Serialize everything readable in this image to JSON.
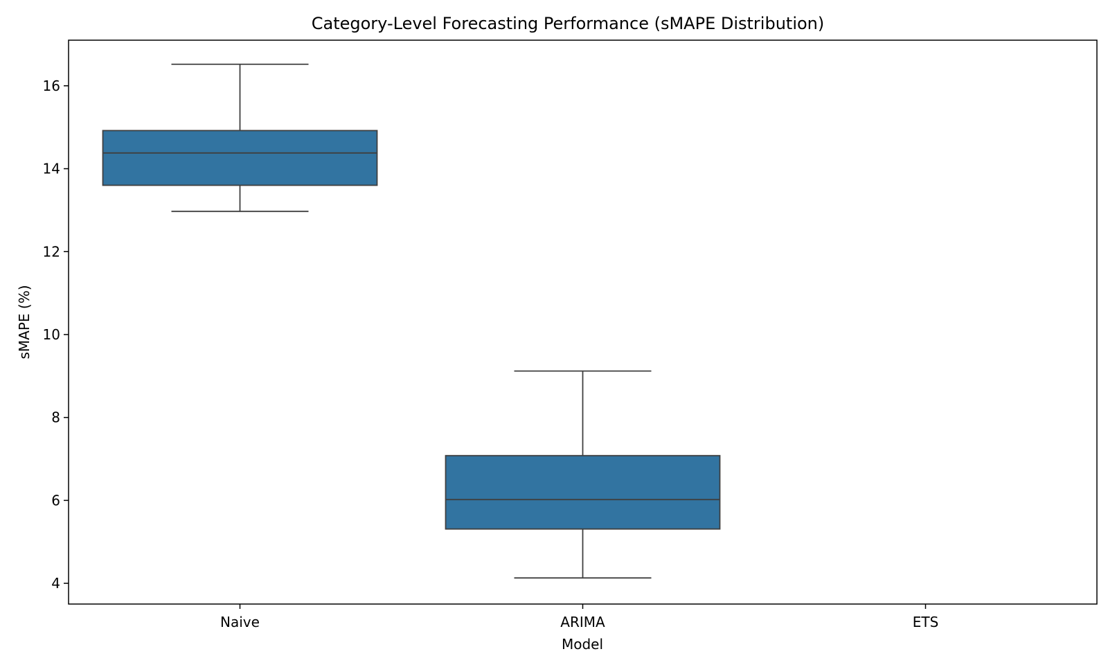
{
  "chart_data": {
    "type": "box",
    "title": "Category-Level Forecasting Performance (sMAPE Distribution)",
    "xlabel": "Model",
    "ylabel": "sMAPE (%)",
    "categories": [
      "Naive",
      "ARIMA",
      "ETS"
    ],
    "yticks": [
      4,
      6,
      8,
      10,
      12,
      14,
      16
    ],
    "ytick_labels": [
      "4",
      "6",
      "8",
      "10",
      "12",
      "14",
      "16"
    ],
    "ylim": [
      3.5,
      17.1
    ],
    "grid": false,
    "boxes": [
      {
        "category": "Naive",
        "whisker_low": 12.97,
        "q1": 13.6,
        "median": 14.38,
        "q3": 14.92,
        "whisker_high": 16.52
      },
      {
        "category": "ARIMA",
        "whisker_low": 4.13,
        "q1": 5.31,
        "median": 6.02,
        "q3": 7.08,
        "whisker_high": 9.12
      },
      {
        "category": "ETS",
        "whisker_low": null,
        "q1": null,
        "median": null,
        "q3": null,
        "whisker_high": null
      }
    ],
    "colors": {
      "box_fill": "#3274a1",
      "line": "#3f3f3f",
      "axes": "#000000"
    }
  }
}
